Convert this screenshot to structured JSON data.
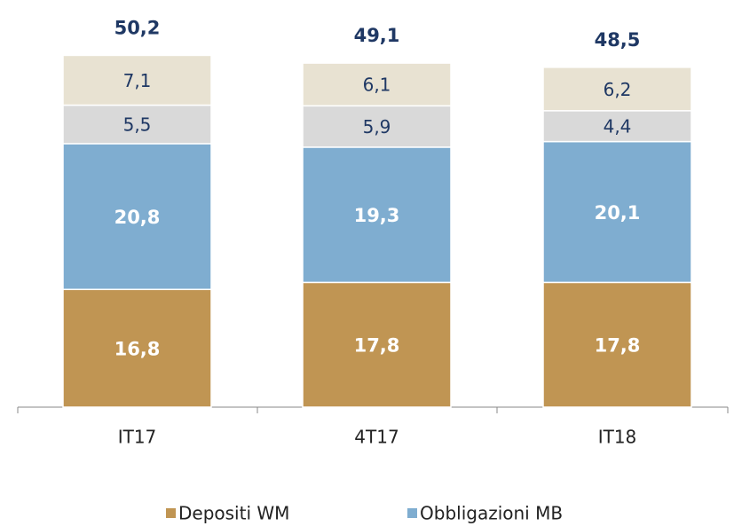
{
  "chart_data": {
    "type": "stacked_bar",
    "categories": [
      "IT17",
      "4T17",
      "IT18"
    ],
    "series": [
      {
        "name": "Depositi WM",
        "color": "#c09553",
        "values": [
          16.8,
          17.8,
          17.8
        ],
        "value_labels": [
          "16,8",
          "17,8",
          "17,8"
        ]
      },
      {
        "name": "Obbligazioni MB",
        "color": "#7fadd0",
        "values": [
          20.8,
          19.3,
          20.1
        ],
        "value_labels": [
          "20,8",
          "19,3",
          "20,1"
        ]
      },
      {
        "color": "#d9d9d9",
        "values": [
          5.5,
          5.9,
          4.4
        ],
        "value_labels": [
          "5,5",
          "5,9",
          "4,4"
        ]
      },
      {
        "color": "#e8e2d2",
        "values": [
          7.1,
          6.1,
          6.2
        ],
        "value_labels": [
          "7,1",
          "6,1",
          "6,2"
        ]
      }
    ],
    "totals": [
      50.2,
      49.1,
      48.5
    ],
    "total_labels": [
      "50,2",
      "49,1",
      "48,5"
    ],
    "legend": "bottom"
  }
}
